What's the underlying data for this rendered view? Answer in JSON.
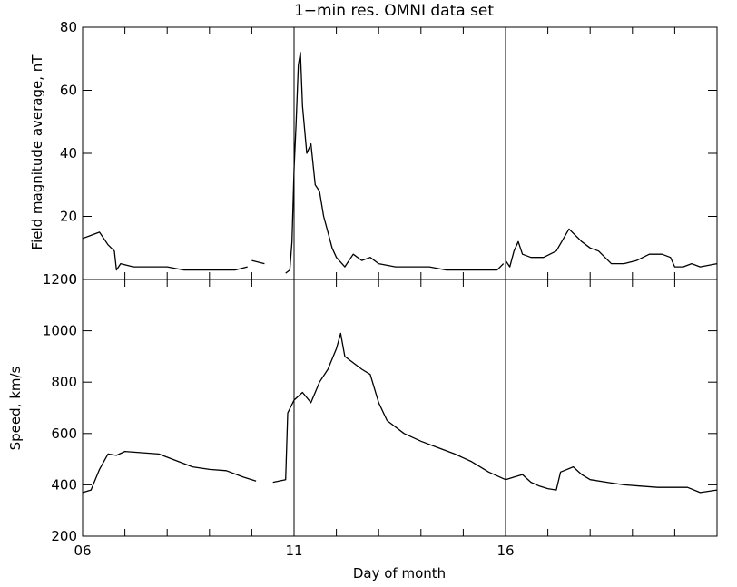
{
  "chart_data": [
    {
      "type": "line",
      "title": "1−min res. OMNI data set",
      "ylabel": "Field magnitude average, nT",
      "xlabel": "",
      "xlim": [
        6,
        21
      ],
      "ylim": [
        0,
        80
      ],
      "yticks": [
        0,
        20,
        40,
        60,
        80
      ],
      "ytick_labels": [
        "0",
        "20",
        "40",
        "60",
        "80"
      ],
      "vertical_markers": [
        11,
        16
      ],
      "series": [
        {
          "name": "Field magnitude",
          "segments": [
            [
              [
                6.0,
                13
              ],
              [
                6.2,
                14
              ],
              [
                6.4,
                15
              ],
              [
                6.5,
                13
              ],
              [
                6.6,
                11
              ],
              [
                6.75,
                9
              ],
              [
                6.8,
                3
              ],
              [
                6.9,
                5
              ],
              [
                7.2,
                4
              ],
              [
                7.6,
                4
              ],
              [
                8.0,
                4
              ],
              [
                8.4,
                3
              ],
              [
                8.8,
                3
              ],
              [
                9.2,
                3
              ],
              [
                9.6,
                3
              ],
              [
                9.9,
                4
              ]
            ],
            [
              [
                10.0,
                6
              ],
              [
                10.3,
                5
              ]
            ],
            [
              [
                10.8,
                2
              ],
              [
                10.9,
                3
              ],
              [
                10.95,
                12
              ],
              [
                11.0,
                35
              ],
              [
                11.05,
                50
              ],
              [
                11.1,
                68
              ],
              [
                11.15,
                72
              ],
              [
                11.2,
                55
              ],
              [
                11.3,
                40
              ],
              [
                11.4,
                43
              ],
              [
                11.5,
                30
              ],
              [
                11.6,
                28
              ],
              [
                11.7,
                20
              ],
              [
                11.8,
                15
              ],
              [
                11.9,
                10
              ],
              [
                12.0,
                7
              ],
              [
                12.2,
                4
              ],
              [
                12.4,
                8
              ],
              [
                12.6,
                6
              ],
              [
                12.8,
                7
              ],
              [
                13.0,
                5
              ],
              [
                13.4,
                4
              ],
              [
                13.8,
                4
              ],
              [
                14.2,
                4
              ],
              [
                14.6,
                3
              ],
              [
                15.0,
                3
              ],
              [
                15.4,
                3
              ],
              [
                15.8,
                3
              ],
              [
                15.95,
                5
              ]
            ],
            [
              [
                16.0,
                6
              ],
              [
                16.1,
                4
              ],
              [
                16.2,
                9
              ],
              [
                16.3,
                12
              ],
              [
                16.4,
                8
              ],
              [
                16.6,
                7
              ],
              [
                16.9,
                7
              ],
              [
                17.2,
                9
              ],
              [
                17.5,
                16
              ],
              [
                17.8,
                12
              ],
              [
                18.0,
                10
              ],
              [
                18.2,
                9
              ],
              [
                18.5,
                5
              ],
              [
                18.8,
                5
              ],
              [
                19.1,
                6
              ],
              [
                19.4,
                8
              ],
              [
                19.7,
                8
              ],
              [
                19.9,
                7
              ],
              [
                20.0,
                4
              ],
              [
                20.2,
                4
              ],
              [
                20.4,
                5
              ],
              [
                20.6,
                4
              ],
              [
                21.0,
                5
              ]
            ]
          ]
        }
      ]
    },
    {
      "type": "line",
      "title": "",
      "ylabel": "Speed, km/s",
      "xlabel": "Day of month",
      "xlim": [
        6,
        21
      ],
      "ylim": [
        200,
        1200
      ],
      "yticks": [
        200,
        400,
        600,
        800,
        1000,
        1200
      ],
      "ytick_labels": [
        "200",
        "400",
        "600",
        "800",
        "1000",
        "1200"
      ],
      "xticks": [
        6,
        11,
        16
      ],
      "xtick_labels": [
        "06",
        "11",
        "16"
      ],
      "vertical_markers": [
        11,
        16
      ],
      "series": [
        {
          "name": "Speed",
          "segments": [
            [
              [
                6.0,
                370
              ],
              [
                6.2,
                380
              ],
              [
                6.4,
                460
              ],
              [
                6.6,
                520
              ],
              [
                6.8,
                515
              ],
              [
                7.0,
                530
              ],
              [
                7.4,
                525
              ],
              [
                7.8,
                520
              ],
              [
                8.2,
                495
              ],
              [
                8.6,
                470
              ],
              [
                9.0,
                460
              ],
              [
                9.4,
                455
              ],
              [
                9.8,
                430
              ],
              [
                10.1,
                415
              ]
            ],
            [
              [
                10.5,
                410
              ],
              [
                10.8,
                420
              ],
              [
                10.85,
                680
              ],
              [
                11.0,
                730
              ],
              [
                11.2,
                760
              ],
              [
                11.4,
                720
              ],
              [
                11.6,
                800
              ],
              [
                11.8,
                850
              ],
              [
                12.0,
                930
              ],
              [
                12.1,
                990
              ],
              [
                12.2,
                900
              ],
              [
                12.6,
                850
              ],
              [
                12.8,
                830
              ],
              [
                13.0,
                720
              ],
              [
                13.2,
                650
              ],
              [
                13.6,
                600
              ],
              [
                14.0,
                570
              ],
              [
                14.4,
                545
              ],
              [
                14.8,
                520
              ],
              [
                15.2,
                490
              ],
              [
                15.6,
                450
              ],
              [
                16.0,
                420
              ],
              [
                16.2,
                430
              ],
              [
                16.4,
                440
              ],
              [
                16.6,
                410
              ],
              [
                16.8,
                395
              ],
              [
                17.0,
                385
              ],
              [
                17.2,
                380
              ],
              [
                17.3,
                450
              ],
              [
                17.6,
                470
              ],
              [
                17.8,
                440
              ],
              [
                18.0,
                420
              ],
              [
                18.4,
                410
              ],
              [
                18.8,
                400
              ],
              [
                19.2,
                395
              ],
              [
                19.6,
                390
              ],
              [
                20.0,
                390
              ],
              [
                20.3,
                390
              ],
              [
                20.6,
                370
              ],
              [
                21.0,
                380
              ]
            ]
          ]
        }
      ]
    }
  ]
}
